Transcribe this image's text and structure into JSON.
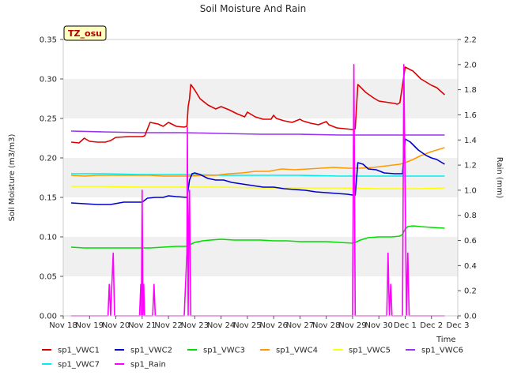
{
  "chart_data": {
    "type": "line",
    "title": "Soil Moisture And Rain",
    "xlabel": "Time",
    "ylabel": "Soil Moisture (m3/m3)",
    "y2label": "Rain (mm)",
    "badge": "TZ_osu",
    "xlim": [
      0,
      15
    ],
    "ylim": [
      0,
      0.35
    ],
    "y2lim": [
      0,
      2.2
    ],
    "x_ticks": [
      {
        "v": 0,
        "label": "Nov 18"
      },
      {
        "v": 1,
        "label": "Nov 19"
      },
      {
        "v": 2,
        "label": "Nov 20"
      },
      {
        "v": 3,
        "label": "Nov 21"
      },
      {
        "v": 4,
        "label": "Nov 22"
      },
      {
        "v": 5,
        "label": "Nov 23"
      },
      {
        "v": 6,
        "label": "Nov 24"
      },
      {
        "v": 7,
        "label": "Nov 25"
      },
      {
        "v": 8,
        "label": "Nov 26"
      },
      {
        "v": 9,
        "label": "Nov 27"
      },
      {
        "v": 10,
        "label": "Nov 28"
      },
      {
        "v": 11,
        "label": "Nov 29"
      },
      {
        "v": 12,
        "label": "Nov 30"
      },
      {
        "v": 13,
        "label": "Dec 1"
      },
      {
        "v": 14,
        "label": "Dec 2"
      },
      {
        "v": 15,
        "label": "Dec 3"
      }
    ],
    "y_ticks": [
      {
        "v": 0,
        "label": "0.00"
      },
      {
        "v": 0.05,
        "label": "0.05"
      },
      {
        "v": 0.1,
        "label": "0.10"
      },
      {
        "v": 0.15,
        "label": "0.15"
      },
      {
        "v": 0.2,
        "label": "0.20"
      },
      {
        "v": 0.25,
        "label": "0.25"
      },
      {
        "v": 0.3,
        "label": "0.30"
      },
      {
        "v": 0.35,
        "label": "0.35"
      }
    ],
    "y2_ticks": [
      {
        "v": 0,
        "label": "0.0"
      },
      {
        "v": 0.2,
        "label": "0.2"
      },
      {
        "v": 0.4,
        "label": "0.4"
      },
      {
        "v": 0.6,
        "label": "0.6"
      },
      {
        "v": 0.8,
        "label": "0.8"
      },
      {
        "v": 1.0,
        "label": "1.0"
      },
      {
        "v": 1.2,
        "label": "1.2"
      },
      {
        "v": 1.4,
        "label": "1.4"
      },
      {
        "v": 1.6,
        "label": "1.6"
      },
      {
        "v": 1.8,
        "label": "1.8"
      },
      {
        "v": 2.0,
        "label": "2.0"
      },
      {
        "v": 2.2,
        "label": "2.2"
      }
    ],
    "series": [
      {
        "name": "sp1_VWC1",
        "color": "#dd0000",
        "axis": "left",
        "x": [
          0.3,
          0.6,
          0.8,
          1.0,
          1.3,
          1.6,
          1.8,
          2.0,
          2.5,
          3.0,
          3.1,
          3.3,
          3.6,
          3.8,
          4.0,
          4.3,
          4.6,
          4.7,
          4.75,
          4.8,
          4.85,
          5.0,
          5.2,
          5.5,
          5.8,
          6.0,
          6.3,
          6.6,
          6.9,
          7.0,
          7.3,
          7.6,
          7.9,
          8.0,
          8.1,
          8.4,
          8.7,
          9.0,
          9.1,
          9.4,
          9.7,
          10.0,
          10.1,
          10.4,
          10.7,
          11.0,
          11.1,
          11.2,
          11.5,
          11.8,
          12.0,
          12.4,
          12.6,
          12.7,
          12.8,
          13.0,
          13.3,
          13.6,
          14.0,
          14.2,
          14.5
        ],
        "y": [
          0.22,
          0.219,
          0.225,
          0.221,
          0.22,
          0.22,
          0.222,
          0.226,
          0.227,
          0.227,
          0.228,
          0.245,
          0.243,
          0.24,
          0.245,
          0.24,
          0.239,
          0.24,
          0.265,
          0.275,
          0.293,
          0.286,
          0.275,
          0.267,
          0.262,
          0.265,
          0.261,
          0.256,
          0.252,
          0.258,
          0.252,
          0.249,
          0.249,
          0.254,
          0.25,
          0.247,
          0.245,
          0.249,
          0.247,
          0.244,
          0.242,
          0.246,
          0.242,
          0.238,
          0.237,
          0.236,
          0.237,
          0.293,
          0.283,
          0.276,
          0.272,
          0.27,
          0.269,
          0.268,
          0.27,
          0.315,
          0.31,
          0.3,
          0.292,
          0.289,
          0.28
        ]
      },
      {
        "name": "sp1_VWC2",
        "color": "#0000cc",
        "axis": "left",
        "x": [
          0.3,
          0.8,
          1.3,
          1.8,
          2.3,
          2.8,
          3.0,
          3.2,
          3.5,
          3.8,
          4.0,
          4.3,
          4.7,
          4.75,
          4.8,
          4.9,
          5.0,
          5.2,
          5.5,
          5.8,
          6.1,
          6.4,
          6.8,
          7.2,
          7.6,
          8.0,
          8.4,
          8.8,
          9.2,
          9.6,
          10.0,
          10.4,
          10.8,
          11.0,
          11.1,
          11.2,
          11.4,
          11.6,
          11.9,
          12.2,
          12.6,
          12.8,
          12.9,
          13.0,
          13.2,
          13.5,
          13.8,
          14.0,
          14.2,
          14.5
        ],
        "y": [
          0.143,
          0.142,
          0.141,
          0.141,
          0.144,
          0.144,
          0.144,
          0.149,
          0.15,
          0.15,
          0.152,
          0.151,
          0.15,
          0.16,
          0.172,
          0.18,
          0.181,
          0.179,
          0.174,
          0.172,
          0.172,
          0.169,
          0.167,
          0.165,
          0.163,
          0.163,
          0.161,
          0.16,
          0.159,
          0.157,
          0.156,
          0.155,
          0.154,
          0.153,
          0.153,
          0.194,
          0.192,
          0.186,
          0.185,
          0.181,
          0.18,
          0.18,
          0.18,
          0.224,
          0.22,
          0.21,
          0.203,
          0.2,
          0.198,
          0.192
        ]
      },
      {
        "name": "sp1_VWC3",
        "color": "#00dd00",
        "axis": "left",
        "x": [
          0.3,
          0.8,
          1.3,
          1.8,
          2.3,
          2.8,
          3.3,
          3.8,
          4.3,
          4.7,
          4.8,
          5.0,
          5.3,
          5.6,
          6.0,
          6.5,
          7.0,
          7.5,
          8.0,
          8.5,
          9.0,
          9.5,
          10.0,
          10.5,
          11.0,
          11.1,
          11.3,
          11.6,
          12.0,
          12.5,
          12.8,
          12.9,
          13.0,
          13.1,
          13.3,
          13.6,
          14.0,
          14.5
        ],
        "y": [
          0.087,
          0.086,
          0.086,
          0.086,
          0.086,
          0.086,
          0.086,
          0.087,
          0.088,
          0.088,
          0.09,
          0.093,
          0.095,
          0.096,
          0.097,
          0.096,
          0.096,
          0.096,
          0.095,
          0.095,
          0.094,
          0.094,
          0.094,
          0.093,
          0.092,
          0.093,
          0.096,
          0.099,
          0.1,
          0.1,
          0.101,
          0.103,
          0.11,
          0.113,
          0.114,
          0.113,
          0.112,
          0.111
        ]
      },
      {
        "name": "sp1_VWC4",
        "color": "#ff9900",
        "axis": "left",
        "x": [
          0.3,
          0.8,
          1.3,
          1.8,
          2.3,
          2.8,
          3.3,
          3.8,
          4.3,
          4.8,
          5.3,
          5.8,
          6.3,
          6.8,
          7.3,
          7.8,
          8.3,
          8.8,
          9.3,
          9.8,
          10.3,
          10.8,
          11.3,
          11.8,
          12.3,
          12.8,
          13.0,
          13.3,
          13.6,
          14.0,
          14.5
        ],
        "y": [
          0.178,
          0.177,
          0.178,
          0.178,
          0.178,
          0.178,
          0.178,
          0.177,
          0.177,
          0.177,
          0.178,
          0.178,
          0.18,
          0.181,
          0.183,
          0.183,
          0.186,
          0.185,
          0.186,
          0.187,
          0.188,
          0.187,
          0.187,
          0.188,
          0.19,
          0.192,
          0.194,
          0.198,
          0.203,
          0.208,
          0.213
        ]
      },
      {
        "name": "sp1_VWC5",
        "color": "#ffff00",
        "axis": "left",
        "x": [
          0.3,
          1.5,
          3.0,
          4.5,
          6.0,
          7.5,
          9.0,
          10.5,
          12.0,
          13.5,
          14.5
        ],
        "y": [
          0.164,
          0.164,
          0.163,
          0.163,
          0.163,
          0.162,
          0.162,
          0.162,
          0.161,
          0.161,
          0.162
        ]
      },
      {
        "name": "sp1_VWC6",
        "color": "#9933ee",
        "axis": "left",
        "x": [
          0.3,
          1.5,
          3.0,
          4.5,
          6.0,
          7.5,
          9.0,
          10.5,
          12.0,
          13.5,
          14.5
        ],
        "y": [
          0.234,
          0.233,
          0.232,
          0.232,
          0.231,
          0.23,
          0.23,
          0.229,
          0.229,
          0.229,
          0.229
        ]
      },
      {
        "name": "sp1_VWC7",
        "color": "#00eeee",
        "axis": "left",
        "x": [
          0.3,
          1.5,
          3.0,
          4.5,
          6.0,
          7.5,
          9.0,
          10.5,
          12.0,
          13.5,
          14.5
        ],
        "y": [
          0.18,
          0.18,
          0.179,
          0.179,
          0.178,
          0.178,
          0.178,
          0.177,
          0.177,
          0.177,
          0.177
        ]
      },
      {
        "name": "sp1_Rain",
        "color": "#ff00ff",
        "axis": "right",
        "x": [
          0.3,
          1.7,
          1.75,
          1.8,
          1.85,
          1.9,
          1.95,
          2.0,
          2.9,
          2.95,
          2.97,
          3.0,
          3.03,
          3.06,
          3.09,
          3.12,
          3.4,
          3.45,
          3.5,
          4.6,
          4.65,
          4.7,
          4.72,
          4.75,
          4.78,
          4.8,
          4.85,
          4.9,
          11.0,
          11.05,
          11.1,
          11.15,
          12.3,
          12.35,
          12.4,
          12.45,
          12.5,
          12.85,
          12.9,
          12.95,
          13.0,
          13.05,
          13.1,
          13.15,
          13.2,
          14.5
        ],
        "y": [
          0,
          0,
          0.25,
          0,
          0.25,
          0.5,
          0,
          0,
          0,
          0.25,
          0,
          1.0,
          0,
          0.25,
          0,
          0,
          0,
          0.25,
          0,
          0,
          0.25,
          0.5,
          1.5,
          0,
          0.75,
          1.0,
          0,
          0,
          0,
          2.0,
          0,
          0,
          0,
          0.5,
          0,
          0.25,
          0,
          0,
          0,
          2.0,
          1.0,
          0,
          0.5,
          0,
          0,
          0
        ]
      }
    ],
    "legend": {
      "placement": "bottom",
      "rows": [
        [
          "sp1_VWC1",
          "sp1_VWC2",
          "sp1_VWC3",
          "sp1_VWC4",
          "sp1_VWC5",
          "sp1_VWC6"
        ],
        [
          "sp1_VWC7",
          "sp1_Rain"
        ]
      ]
    },
    "grid": false,
    "background_bands": true
  }
}
